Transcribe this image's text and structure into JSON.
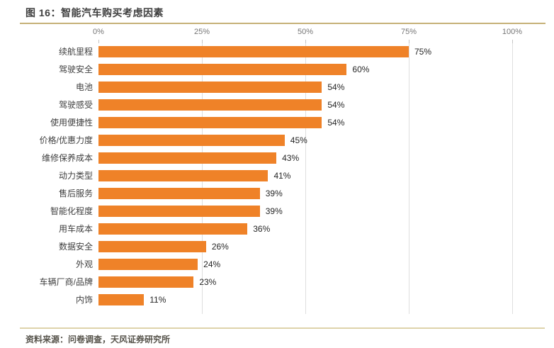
{
  "figure": {
    "title": "图 16：智能汽车购买考虑因素",
    "source": "资料来源：问卷调查，天风证券研究所"
  },
  "colors": {
    "bar": "#ef8228",
    "title_rule": "#c6b178",
    "footer_rule": "#ded3ab",
    "gridline": "#dedede",
    "axis_text": "#757575",
    "category_text": "#3f3f3f",
    "value_text": "#262626",
    "title_text": "#3f3f3f",
    "background": "#ffffff"
  },
  "chart_data": {
    "type": "bar",
    "orientation": "horizontal",
    "title": "图 16：智能汽车购买考虑因素",
    "xlabel": "",
    "ylabel": "",
    "xlim": [
      0,
      100
    ],
    "x_ticks": [
      {
        "value": 0,
        "label": "0%"
      },
      {
        "value": 25,
        "label": "25%"
      },
      {
        "value": 50,
        "label": "50%"
      },
      {
        "value": 75,
        "label": "75%"
      },
      {
        "value": 100,
        "label": "100%"
      }
    ],
    "grid": "vertical-at-25-50-75-100",
    "legend": "none",
    "categories": [
      "续航里程",
      "驾驶安全",
      "电池",
      "驾驶感受",
      "使用便捷性",
      "价格/优惠力度",
      "维修保养成本",
      "动力类型",
      "售后服务",
      "智能化程度",
      "用车成本",
      "数据安全",
      "外观",
      "车辆厂商/品牌",
      "内饰"
    ],
    "values": [
      75,
      60,
      54,
      54,
      54,
      45,
      43,
      41,
      39,
      39,
      36,
      26,
      24,
      23,
      11
    ],
    "value_labels": [
      "75%",
      "60%",
      "54%",
      "54%",
      "54%",
      "45%",
      "43%",
      "41%",
      "39%",
      "39%",
      "36%",
      "26%",
      "24%",
      "23%",
      "11%"
    ]
  }
}
